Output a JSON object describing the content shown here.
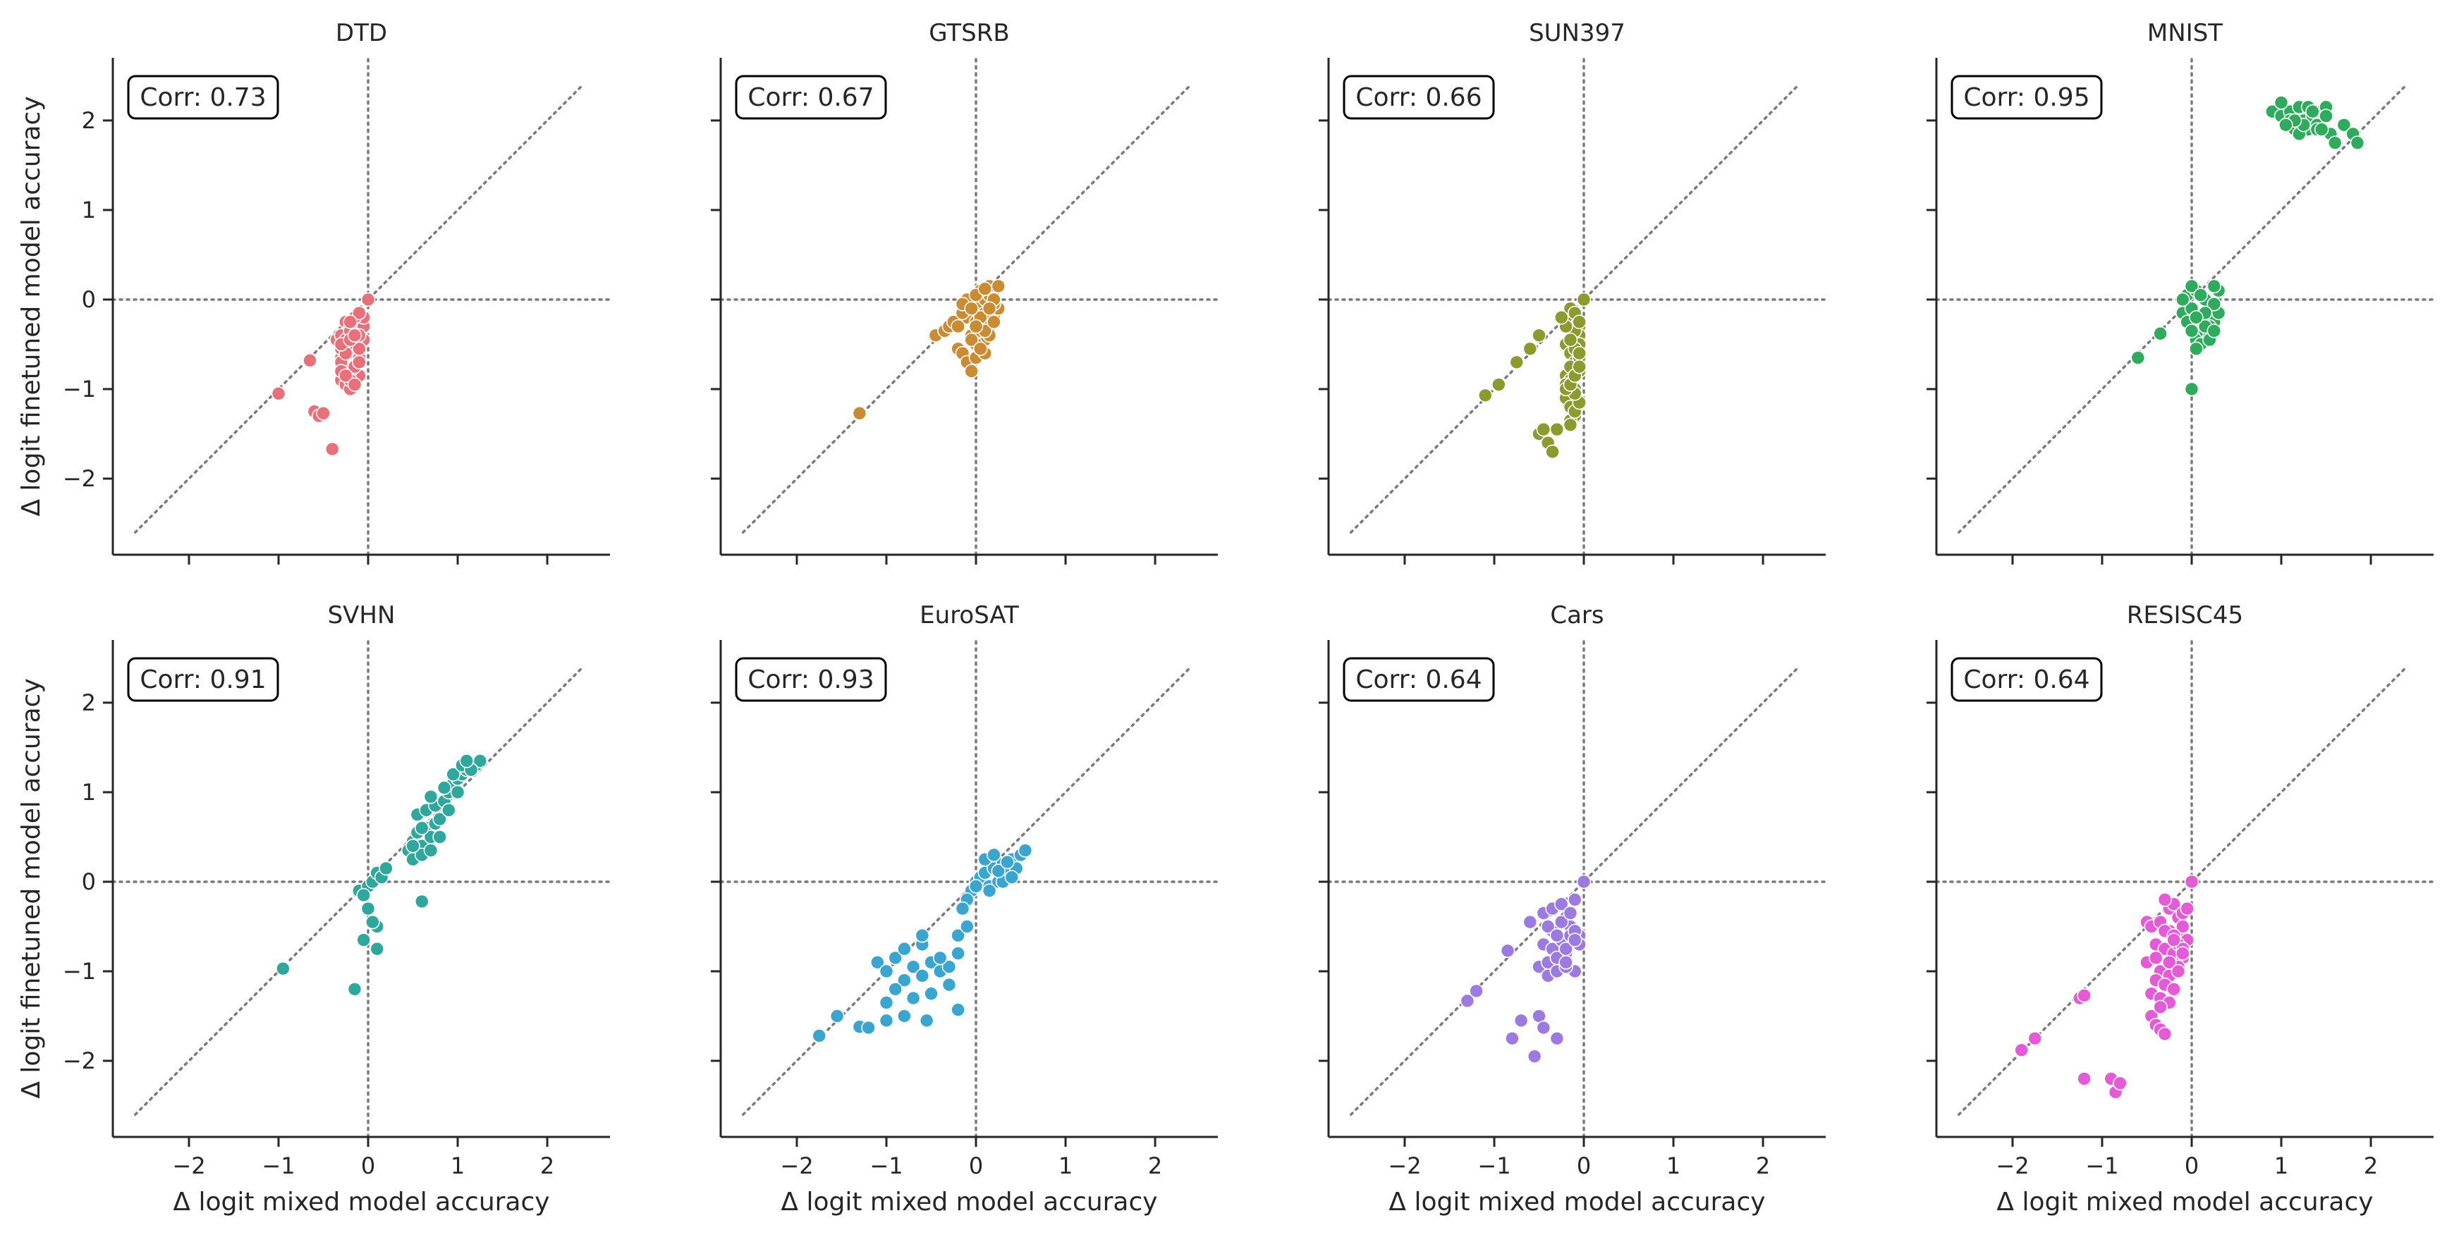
{
  "figure": {
    "xlabel": "Δ logit mixed model accuracy",
    "ylabel": "Δ logit finetuned model accuracy",
    "xticks": [
      -2,
      -1,
      0,
      1,
      2
    ],
    "yticks": [
      -2,
      -1,
      0,
      1,
      2
    ],
    "xlim": [
      -2.85,
      2.7
    ],
    "ylim": [
      -2.85,
      2.7
    ],
    "diagonal": [
      -2.6,
      2.4
    ]
  },
  "chart_data": [
    {
      "type": "scatter",
      "title": "DTD",
      "annotation": "Corr: 0.73",
      "color": "#e8707a",
      "x": [
        -1.0,
        -0.65,
        -0.6,
        -0.55,
        -0.5,
        -0.4,
        -0.35,
        -0.3,
        -0.3,
        -0.25,
        -0.2,
        -0.2,
        -0.15,
        -0.15,
        -0.1,
        -0.05,
        0.0,
        -0.3,
        -0.25,
        -0.2,
        -0.15,
        -0.1,
        -0.05,
        -0.3,
        -0.2,
        -0.15,
        -0.1,
        -0.05,
        -0.3,
        -0.25,
        -0.2,
        -0.15,
        -0.1,
        -0.3,
        -0.2,
        -0.1,
        -0.25,
        -0.15,
        -0.1,
        -0.3,
        -0.2,
        -0.15,
        -0.1,
        -0.25,
        -0.2,
        -0.15
      ],
      "y": [
        -1.05,
        -0.68,
        -1.25,
        -1.3,
        -1.27,
        -1.67,
        -0.45,
        -0.4,
        -0.65,
        -0.25,
        -0.3,
        -0.55,
        -0.35,
        -0.6,
        -0.25,
        -0.3,
        0.0,
        -0.9,
        -0.95,
        -1.0,
        -0.75,
        -0.85,
        -0.45,
        -0.7,
        -0.8,
        -0.5,
        -0.65,
        -0.2,
        -0.55,
        -0.45,
        -0.35,
        -0.2,
        -0.4,
        -0.8,
        -0.9,
        -0.55,
        -0.6,
        -0.75,
        -0.15,
        -0.5,
        -0.45,
        -0.4,
        -0.7,
        -0.85,
        -0.25,
        -0.95
      ]
    },
    {
      "type": "scatter",
      "title": "GTSRB",
      "annotation": "Corr: 0.67",
      "color": "#c98c33",
      "x": [
        -1.3,
        -0.45,
        -0.35,
        -0.3,
        -0.25,
        -0.2,
        -0.15,
        -0.1,
        -0.05,
        0.0,
        0.05,
        0.1,
        0.15,
        0.2,
        0.25,
        -0.1,
        0.0,
        0.1,
        0.2,
        -0.2,
        -0.05,
        0.05,
        0.15,
        -0.15,
        0.0,
        0.1,
        0.2,
        -0.1,
        0.05,
        0.15,
        0.25,
        0.0,
        0.1,
        -0.05,
        0.05,
        0.15,
        0.0,
        0.1,
        0.2,
        -0.15,
        0.05,
        0.0,
        -0.05,
        0.1,
        0.2,
        0.15
      ],
      "y": [
        -1.27,
        -0.4,
        -0.35,
        -0.3,
        -0.25,
        -0.55,
        -0.6,
        -0.7,
        -0.8,
        -0.65,
        -0.5,
        -0.45,
        -0.3,
        -0.2,
        -0.1,
        -0.2,
        -0.1,
        0.0,
        0.1,
        -0.3,
        -0.4,
        -0.35,
        0.05,
        -0.15,
        -0.25,
        -0.15,
        -0.05,
        0.0,
        0.1,
        0.15,
        0.15,
        -0.5,
        -0.6,
        -0.45,
        -0.55,
        -0.4,
        0.05,
        -0.35,
        -0.25,
        -0.05,
        -0.2,
        -0.3,
        -0.1,
        0.12,
        0.0,
        -0.1
      ]
    },
    {
      "type": "scatter",
      "title": "SUN397",
      "annotation": "Corr: 0.66",
      "color": "#8d9a2e",
      "x": [
        -1.1,
        -0.95,
        -0.75,
        -0.6,
        -0.5,
        -0.5,
        -0.45,
        -0.4,
        -0.35,
        -0.3,
        -0.2,
        -0.15,
        -0.1,
        -0.05,
        0.0,
        -0.2,
        -0.15,
        -0.1,
        -0.05,
        -0.2,
        -0.15,
        -0.1,
        -0.05,
        -0.2,
        -0.15,
        -0.1,
        -0.05,
        -0.15,
        -0.1,
        -0.05,
        -0.2,
        -0.1,
        -0.15,
        -0.05,
        -0.2,
        -0.1,
        -0.15,
        -0.05,
        -0.25,
        -0.1,
        -0.2,
        -0.15,
        -0.05,
        -0.1,
        -0.15,
        -0.05
      ],
      "y": [
        -1.07,
        -0.95,
        -0.7,
        -0.55,
        -0.4,
        -1.5,
        -1.45,
        -1.6,
        -1.7,
        -1.45,
        -0.2,
        -0.1,
        -0.15,
        -0.3,
        0.0,
        -0.5,
        -0.6,
        -0.7,
        -0.4,
        -0.85,
        -0.9,
        -1.0,
        -0.8,
        -1.1,
        -1.2,
        -1.3,
        -0.5,
        -1.35,
        -1.25,
        -1.15,
        -0.95,
        -0.35,
        -0.75,
        -0.65,
        -0.3,
        -0.55,
        -0.45,
        -0.25,
        -0.2,
        -1.05,
        -1.0,
        -0.95,
        -0.6,
        -0.85,
        -1.4,
        -0.75
      ]
    },
    {
      "type": "scatter",
      "title": "MNIST",
      "annotation": "Corr: 0.95",
      "color": "#2eab5c",
      "x": [
        -0.6,
        -0.35,
        -0.1,
        -0.05,
        0.0,
        0.05,
        0.1,
        0.15,
        0.2,
        0.25,
        0.3,
        -0.05,
        0.05,
        0.15,
        0.25,
        0.0,
        0.1,
        0.2,
        0.3,
        -0.1,
        0.05,
        0.15,
        0.25,
        0.0,
        0.1,
        0.2,
        0.0,
        0.15,
        0.05,
        0.25,
        0.9,
        1.0,
        1.05,
        1.1,
        1.15,
        1.2,
        1.25,
        1.3,
        1.35,
        1.4,
        1.45,
        1.5,
        1.55,
        1.6,
        1.7,
        1.8,
        1.85,
        1.0,
        1.1,
        1.2,
        1.3,
        1.4,
        1.5,
        1.25,
        1.35,
        1.15,
        1.05,
        1.45
      ],
      "y": [
        -0.65,
        -0.38,
        -0.15,
        -0.25,
        -1.0,
        -0.45,
        -0.5,
        -0.35,
        -0.4,
        -0.25,
        -0.15,
        0.05,
        0.1,
        0.0,
        -0.05,
        -0.1,
        -0.2,
        -0.3,
        0.1,
        0.0,
        -0.55,
        -0.15,
        0.15,
        0.15,
        0.05,
        -0.45,
        -0.35,
        -0.3,
        -0.2,
        -0.35,
        2.1,
        2.05,
        1.95,
        2.1,
        1.9,
        2.15,
        2.0,
        1.9,
        2.05,
        1.95,
        2.1,
        2.15,
        1.85,
        1.75,
        1.95,
        1.85,
        1.75,
        2.2,
        2.0,
        1.85,
        2.15,
        1.9,
        2.05,
        1.95,
        2.1,
        2.0,
        1.95,
        1.9
      ]
    },
    {
      "type": "scatter",
      "title": "SVHN",
      "annotation": "Corr: 0.91",
      "color": "#2fa79c",
      "x": [
        -0.95,
        -0.15,
        -0.1,
        -0.05,
        0.0,
        0.05,
        0.1,
        0.15,
        0.2,
        0.0,
        0.1,
        0.1,
        0.05,
        -0.05,
        0.6,
        0.45,
        0.5,
        0.55,
        0.6,
        0.65,
        0.7,
        0.75,
        0.8,
        0.5,
        0.6,
        0.7,
        0.8,
        0.55,
        0.65,
        0.75,
        0.85,
        0.9,
        0.95,
        1.0,
        1.05,
        1.1,
        1.15,
        1.2,
        1.25,
        0.85,
        0.95,
        1.05,
        1.15,
        0.7,
        0.6,
        0.5,
        0.9,
        1.0,
        1.1
      ],
      "y": [
        -0.97,
        -1.2,
        -0.1,
        -0.65,
        -0.05,
        0.0,
        0.1,
        0.05,
        0.15,
        -0.3,
        -0.5,
        -0.75,
        -0.45,
        -0.15,
        -0.22,
        0.35,
        0.45,
        0.55,
        0.4,
        0.6,
        0.5,
        0.65,
        0.7,
        0.25,
        0.3,
        0.35,
        0.5,
        0.75,
        0.8,
        0.85,
        0.9,
        1.0,
        1.1,
        1.15,
        1.2,
        1.25,
        1.3,
        1.3,
        1.35,
        1.05,
        1.2,
        1.3,
        1.25,
        0.95,
        0.6,
        0.4,
        0.8,
        1.0,
        1.35
      ]
    },
    {
      "type": "scatter",
      "title": "EuroSAT",
      "annotation": "Corr: 0.93",
      "color": "#3aa5cf",
      "x": [
        -1.75,
        -1.55,
        -1.3,
        -1.2,
        -1.0,
        -0.8,
        -0.55,
        -0.2,
        -1.1,
        -1.0,
        -0.9,
        -0.8,
        -0.7,
        -0.6,
        -0.5,
        -0.4,
        -0.3,
        -0.2,
        -0.1,
        -0.05,
        -0.9,
        -0.7,
        -0.5,
        -0.3,
        -0.8,
        -0.6,
        -0.4,
        -0.2,
        0.0,
        0.05,
        0.1,
        0.15,
        0.2,
        0.25,
        0.3,
        0.35,
        0.4,
        0.45,
        0.5,
        0.55,
        0.1,
        0.2,
        0.3,
        0.4,
        0.15,
        0.25,
        0.35,
        0.0,
        -0.1,
        -0.15,
        -1.0,
        -0.6
      ],
      "y": [
        -1.72,
        -1.5,
        -1.62,
        -1.63,
        -1.55,
        -1.5,
        -1.55,
        -1.43,
        -0.9,
        -1.0,
        -0.85,
        -1.1,
        -0.95,
        -1.05,
        -0.9,
        -1.0,
        -0.95,
        -0.6,
        -0.5,
        -0.1,
        -1.2,
        -1.3,
        -1.25,
        -1.15,
        -0.75,
        -0.7,
        -0.85,
        -0.8,
        0.0,
        0.05,
        0.1,
        -0.05,
        0.15,
        0.0,
        0.2,
        0.1,
        0.25,
        0.15,
        0.3,
        0.35,
        0.25,
        0.3,
        0.0,
        0.05,
        -0.1,
        0.12,
        0.22,
        -0.05,
        -0.2,
        -0.3,
        -1.35,
        -0.6
      ]
    },
    {
      "type": "scatter",
      "title": "Cars",
      "annotation": "Corr: 0.64",
      "color": "#9b7be0",
      "x": [
        -1.3,
        -1.2,
        -0.85,
        -0.8,
        -0.7,
        -0.55,
        -0.5,
        -0.45,
        -0.3,
        -0.6,
        -0.45,
        -0.35,
        -0.25,
        -0.2,
        -0.15,
        -0.1,
        -0.05,
        0.0,
        -0.5,
        -0.4,
        -0.3,
        -0.2,
        -0.1,
        -0.45,
        -0.35,
        -0.25,
        -0.15,
        -0.05,
        -0.4,
        -0.3,
        -0.2,
        -0.1,
        -0.35,
        -0.25,
        -0.15,
        -0.3,
        -0.2,
        -0.1,
        -0.4,
        -0.3,
        -0.2
      ],
      "y": [
        -1.33,
        -1.22,
        -0.77,
        -1.75,
        -1.55,
        -1.95,
        -1.5,
        -1.63,
        -1.75,
        -0.45,
        -0.35,
        -0.3,
        -0.25,
        -0.4,
        -0.5,
        -0.2,
        -0.6,
        0.0,
        -0.95,
        -0.9,
        -0.85,
        -0.8,
        -1.0,
        -0.7,
        -0.75,
        -0.65,
        -0.6,
        -0.7,
        -1.05,
        -1.0,
        -0.95,
        -0.55,
        -0.55,
        -0.45,
        -0.35,
        -0.85,
        -0.75,
        -0.65,
        -0.5,
        -0.6,
        -0.9
      ]
    },
    {
      "type": "scatter",
      "title": "RESISC45",
      "annotation": "Corr: 0.64",
      "color": "#e55ad6",
      "x": [
        -1.9,
        -1.75,
        -1.25,
        -1.2,
        -1.2,
        -0.9,
        -0.85,
        -0.8,
        -0.5,
        -0.45,
        -0.4,
        -0.35,
        -0.3,
        -0.25,
        -0.2,
        -0.15,
        -0.1,
        -0.05,
        0.0,
        -0.45,
        -0.35,
        -0.25,
        -0.15,
        -0.05,
        -0.4,
        -0.3,
        -0.2,
        -0.1,
        -0.5,
        -0.35,
        -0.25,
        -0.15,
        -0.4,
        -0.3,
        -0.2,
        -0.1,
        -0.45,
        -0.35,
        -0.25,
        -0.15,
        -0.3,
        -0.2,
        -0.1,
        -0.4,
        -0.25,
        -0.35,
        -0.15,
        -0.3,
        -0.2,
        -0.1
      ],
      "y": [
        -1.88,
        -1.75,
        -1.3,
        -1.27,
        -2.2,
        -2.2,
        -2.35,
        -2.25,
        -0.45,
        -1.5,
        -1.6,
        -1.65,
        -1.7,
        -0.3,
        -0.25,
        -0.4,
        -0.35,
        -0.3,
        0.0,
        -0.5,
        -0.45,
        -0.55,
        -0.6,
        -0.65,
        -0.7,
        -0.75,
        -0.8,
        -0.85,
        -0.9,
        -1.0,
        -1.05,
        -0.95,
        -1.1,
        -1.15,
        -1.2,
        -0.5,
        -1.25,
        -1.3,
        -1.35,
        -0.7,
        -0.55,
        -0.6,
        -0.75,
        -0.85,
        -0.9,
        -1.4,
        -1.0,
        -0.2,
        -0.65,
        -0.8
      ]
    }
  ]
}
